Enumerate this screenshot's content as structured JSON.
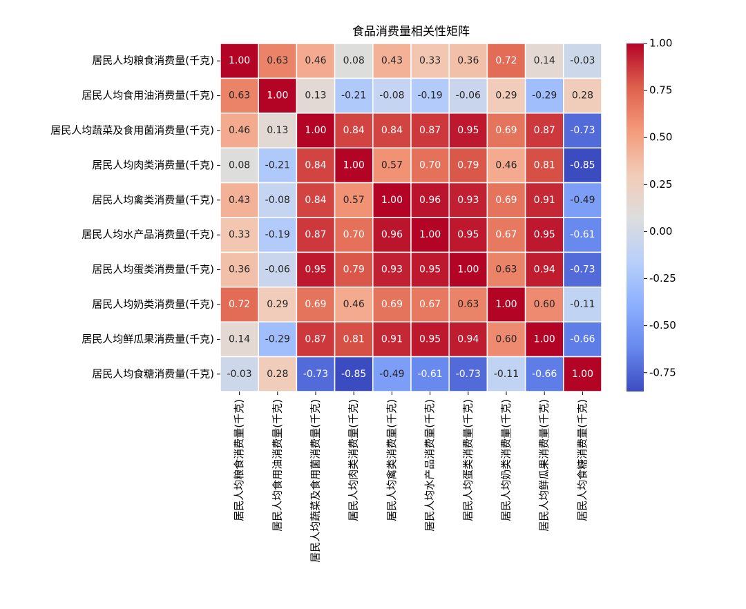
{
  "chart_data": {
    "type": "heatmap",
    "title": "食品消费量相关性矩阵",
    "categories": [
      "居民人均粮食消费量(千克)",
      "居民人均食用油消费量(千克)",
      "居民人均蔬菜及食用菌消费量(千克)",
      "居民人均肉类消费量(千克)",
      "居民人均禽类消费量(千克)",
      "居民人均水产品消费量(千克)",
      "居民人均蛋类消费量(千克)",
      "居民人均奶类消费量(千克)",
      "居民人均鲜瓜果消费量(千克)",
      "居民人均食糖消费量(千克)"
    ],
    "x_categories": [
      "居民人均粮食消费量(千克)",
      "居民人均食用油消费量(千克)",
      "居民人均蔬菜及食用菌消费量(千克)",
      "居民人均肉类消费量(千克)",
      "居民人均禽类消费量(千克)",
      "居民人均水产品消费量(千克)",
      "居民人均蛋类消费量(千克)",
      "居民人均奶类消费量(千克)",
      "居民人均鲜瓜果消费量(千克)",
      "居民人均食糖消费量(千克)"
    ],
    "values": [
      [
        1,
        0.63,
        0.46,
        0.08,
        0.43,
        0.33,
        0.36,
        0.72,
        0.14,
        -0.03
      ],
      [
        0.63,
        1,
        0.13,
        -0.21,
        -0.08,
        -0.19,
        -0.06,
        0.29,
        -0.29,
        0.28
      ],
      [
        0.46,
        0.13,
        1,
        0.84,
        0.84,
        0.87,
        0.95,
        0.69,
        0.87,
        -0.73
      ],
      [
        0.08,
        -0.21,
        0.84,
        1,
        0.57,
        0.7,
        0.79,
        0.46,
        0.81,
        -0.85
      ],
      [
        0.43,
        -0.08,
        0.84,
        0.57,
        1,
        0.96,
        0.93,
        0.69,
        0.91,
        -0.49
      ],
      [
        0.33,
        -0.19,
        0.87,
        0.7,
        0.96,
        1,
        0.95,
        0.67,
        0.95,
        -0.61
      ],
      [
        0.36,
        -0.06,
        0.95,
        0.79,
        0.93,
        0.95,
        1,
        0.63,
        0.94,
        -0.73
      ],
      [
        0.72,
        0.29,
        0.69,
        0.46,
        0.69,
        0.67,
        0.63,
        1,
        0.6,
        -0.11
      ],
      [
        0.14,
        -0.29,
        0.87,
        0.81,
        0.91,
        0.95,
        0.94,
        0.6,
        1,
        -0.66
      ],
      [
        -0.03,
        0.28,
        -0.73,
        -0.85,
        -0.49,
        -0.61,
        -0.73,
        -0.11,
        -0.66,
        1
      ]
    ],
    "value_labels": [
      [
        "1.00",
        "0.63",
        "0.46",
        "0.08",
        "0.43",
        "0.33",
        "0.36",
        "0.72",
        "0.14",
        "-0.03"
      ],
      [
        "0.63",
        "1.00",
        "0.13",
        "-0.21",
        "-0.08",
        "-0.19",
        "-0.06",
        "0.29",
        "-0.29",
        "0.28"
      ],
      [
        "0.46",
        "0.13",
        "1.00",
        "0.84",
        "0.84",
        "0.87",
        "0.95",
        "0.69",
        "0.87",
        "-0.73"
      ],
      [
        "0.08",
        "-0.21",
        "0.84",
        "1.00",
        "0.57",
        "0.70",
        "0.79",
        "0.46",
        "0.81",
        "-0.85"
      ],
      [
        "0.43",
        "-0.08",
        "0.84",
        "0.57",
        "1.00",
        "0.96",
        "0.93",
        "0.69",
        "0.91",
        "-0.49"
      ],
      [
        "0.33",
        "-0.19",
        "0.87",
        "0.70",
        "0.96",
        "1.00",
        "0.95",
        "0.67",
        "0.95",
        "-0.61"
      ],
      [
        "0.36",
        "-0.06",
        "0.95",
        "0.79",
        "0.93",
        "0.95",
        "1.00",
        "0.63",
        "0.94",
        "-0.73"
      ],
      [
        "0.72",
        "0.29",
        "0.69",
        "0.46",
        "0.69",
        "0.67",
        "0.63",
        "1.00",
        "0.60",
        "-0.11"
      ],
      [
        "0.14",
        "-0.29",
        "0.87",
        "0.81",
        "0.91",
        "0.95",
        "0.94",
        "0.60",
        "1.00",
        "-0.66"
      ],
      [
        "-0.03",
        "0.28",
        "-0.73",
        "-0.85",
        "-0.49",
        "-0.61",
        "-0.73",
        "-0.11",
        "-0.66",
        "1.00"
      ]
    ],
    "colormap": "coolwarm",
    "clim": [
      -0.85,
      1
    ],
    "cticks": [
      {
        "value": 1,
        "label": "1.00"
      },
      0.75,
      {
        "value": 0.5,
        "label": "0.50"
      },
      0.25,
      {
        "value": 0,
        "label": "0.00"
      },
      -0.25,
      {
        "value": -0.5,
        "label": "-0.50"
      },
      -0.75
    ]
  }
}
